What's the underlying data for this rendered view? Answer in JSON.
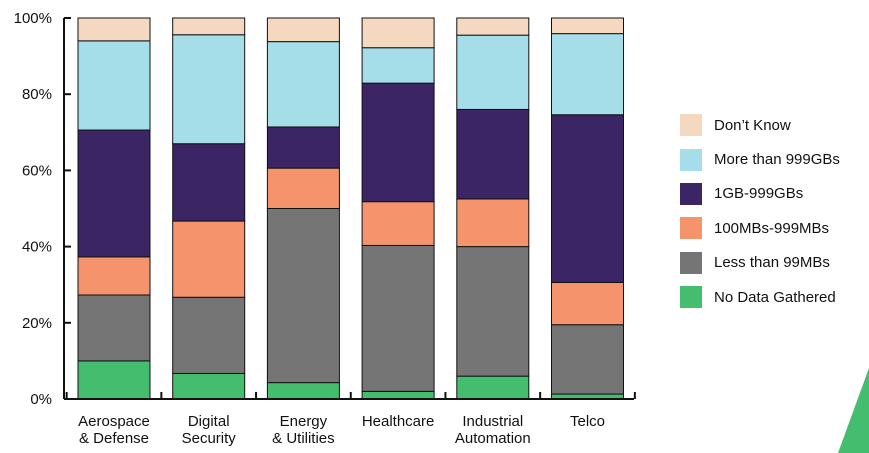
{
  "chart_data": {
    "type": "stacked_bar",
    "orientation": "vertical",
    "categories": [
      [
        "Aerospace",
        "& Defense"
      ],
      [
        "Digital",
        "Security"
      ],
      [
        "Energy",
        "& Utilities"
      ],
      [
        "Healthcare"
      ],
      [
        "Industrial",
        "Automation"
      ],
      [
        "Telco"
      ]
    ],
    "series": [
      {
        "name": "No Data Gathered",
        "color": "#45bd6e",
        "values": [
          10,
          6.7,
          4.3,
          2,
          6,
          1.3
        ]
      },
      {
        "name": "Less than 99MBs",
        "color": "#757575",
        "values": [
          17.3,
          20,
          45.7,
          38.3,
          34,
          18.2
        ]
      },
      {
        "name": "100MBs-999MBs",
        "color": "#f4936c",
        "values": [
          10,
          20,
          10.6,
          11.5,
          12.5,
          11.1
        ]
      },
      {
        "name": "1GB-999GBs",
        "color": "#3b2565",
        "values": [
          33.3,
          20.3,
          10.8,
          31.1,
          23.5,
          44
        ]
      },
      {
        "name": "More than 999GBs",
        "color": "#a5dde8",
        "values": [
          23.4,
          28.6,
          22.4,
          9.3,
          19.5,
          21.3
        ]
      },
      {
        "name": "Don’t Know",
        "color": "#f4d9c0",
        "values": [
          6,
          4.4,
          6.2,
          7.8,
          4.5,
          4.1
        ]
      }
    ],
    "y_ticks": [
      "0%",
      "20%",
      "40%",
      "60%",
      "80%",
      "100%"
    ],
    "ylim": [
      0,
      100
    ],
    "legend_position": "right",
    "grid": false
  },
  "legend": {
    "order": [
      "Don’t Know",
      "More than 999GBs",
      "1GB-999GBs",
      "100MBs-999MBs",
      "Less than 99MBs",
      "No Data Gathered"
    ]
  },
  "decoration": {
    "corner_color": "#45bd6e"
  }
}
